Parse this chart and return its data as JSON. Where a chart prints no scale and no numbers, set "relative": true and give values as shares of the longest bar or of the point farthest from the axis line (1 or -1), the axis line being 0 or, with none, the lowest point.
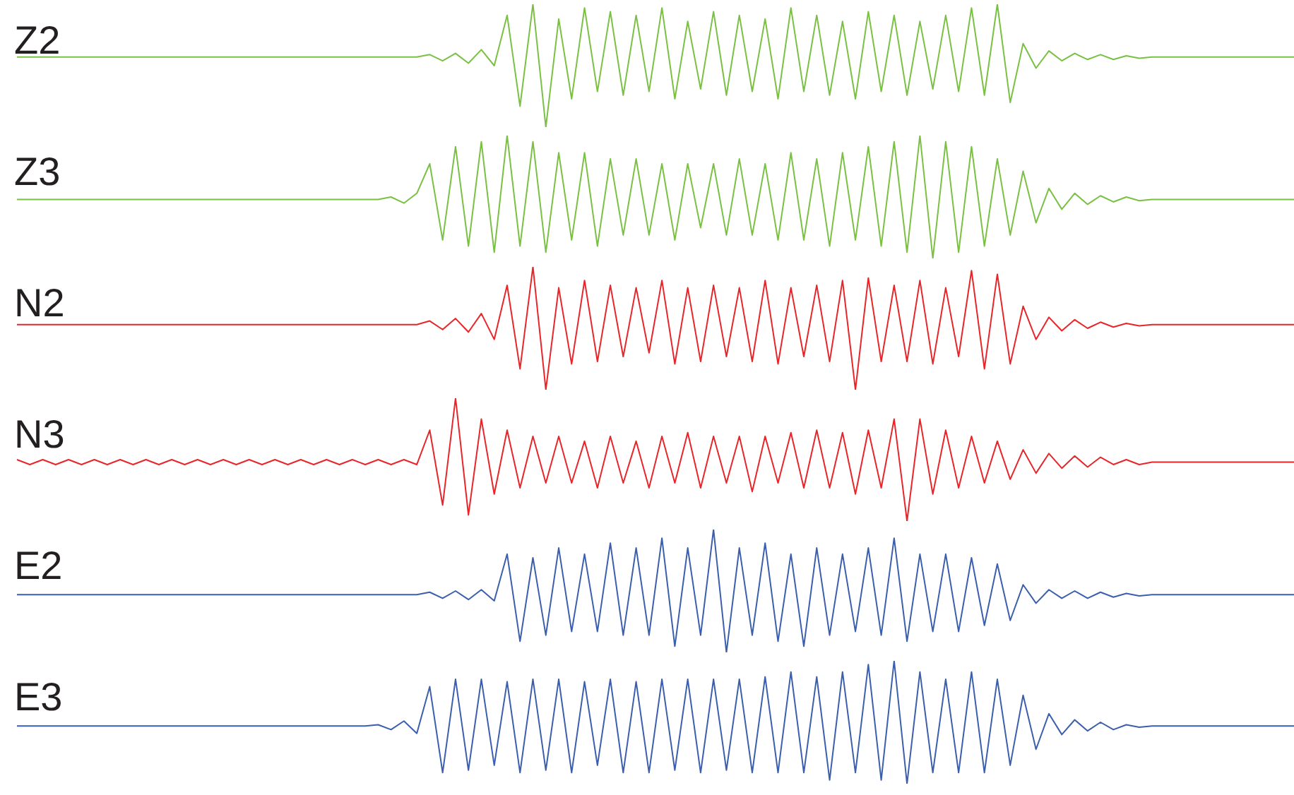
{
  "chart_data": [
    {
      "type": "line",
      "relative": true,
      "title": "Z2",
      "categories": [
        null,
        null,
        null,
        null,
        null,
        null,
        null,
        null,
        null,
        null,
        null,
        null,
        null,
        null,
        null,
        null,
        null,
        null,
        null,
        null,
        null,
        null,
        null,
        null,
        null,
        null,
        null,
        null,
        null,
        null,
        null,
        null,
        null,
        null,
        null,
        null,
        null,
        null,
        null,
        null,
        null,
        null,
        null,
        null,
        null,
        null,
        null,
        null,
        null,
        null,
        null,
        null,
        null,
        null,
        null,
        null,
        null,
        null,
        null,
        null,
        null,
        null,
        null,
        null,
        null,
        null,
        null,
        null,
        null,
        null,
        null,
        null,
        null,
        null,
        null,
        null,
        null,
        null,
        null,
        null,
        null,
        null,
        null,
        null,
        null,
        null,
        null,
        null,
        null,
        null,
        null,
        null,
        null,
        null,
        null,
        null,
        null,
        null,
        null,
        null
      ],
      "series": [
        {
          "color": "#7ac143",
          "values": [
            0.57,
            0.57,
            0.57,
            0.57,
            0.57,
            0.57,
            0.57,
            0.57,
            0.57,
            0.57,
            0.57,
            0.57,
            0.57,
            0.57,
            0.57,
            0.57,
            0.57,
            0.57,
            0.57,
            0.57,
            0.57,
            0.57,
            0.57,
            0.57,
            0.57,
            0.57,
            0.57,
            0.57,
            0.57,
            0.57,
            0.57,
            0.57,
            0.59,
            0.54,
            0.6,
            0.52,
            0.63,
            0.5,
            0.91,
            0.17,
            1,
            0,
            0.88,
            0.23,
            0.97,
            0.29,
            0.94,
            0.26,
            0.91,
            0.29,
            0.97,
            0.23,
            0.86,
            0.31,
            0.94,
            0.26,
            0.91,
            0.29,
            0.88,
            0.23,
            0.97,
            0.29,
            0.91,
            0.26,
            0.86,
            0.23,
            0.94,
            0.29,
            0.91,
            0.26,
            0.86,
            0.31,
            0.91,
            0.29,
            0.97,
            0.26,
            1,
            0.2,
            0.68,
            0.48,
            0.62,
            0.54,
            0.6,
            0.55,
            0.59,
            0.55,
            0.58,
            0.56,
            0.57,
            0.57,
            0.57,
            0.57,
            0.57,
            0.57,
            0.57,
            0.57,
            0.57,
            0.57,
            0.57,
            0.57
          ]
        }
      ]
    },
    {
      "type": "line",
      "relative": true,
      "title": "Z3",
      "categories": [
        null,
        null,
        null,
        null,
        null,
        null,
        null,
        null,
        null,
        null,
        null,
        null,
        null,
        null,
        null,
        null,
        null,
        null,
        null,
        null,
        null,
        null,
        null,
        null,
        null,
        null,
        null,
        null,
        null,
        null,
        null,
        null,
        null,
        null,
        null,
        null,
        null,
        null,
        null,
        null,
        null,
        null,
        null,
        null,
        null,
        null,
        null,
        null,
        null,
        null,
        null,
        null,
        null,
        null,
        null,
        null,
        null,
        null,
        null,
        null,
        null,
        null,
        null,
        null,
        null,
        null,
        null,
        null,
        null,
        null,
        null,
        null,
        null,
        null,
        null,
        null,
        null,
        null,
        null,
        null,
        null,
        null,
        null,
        null,
        null,
        null,
        null,
        null,
        null,
        null,
        null,
        null,
        null,
        null,
        null,
        null,
        null,
        null,
        null,
        null
      ],
      "series": [
        {
          "color": "#7ac143",
          "values": [
            0.48,
            0.48,
            0.48,
            0.48,
            0.48,
            0.48,
            0.48,
            0.48,
            0.48,
            0.48,
            0.48,
            0.48,
            0.48,
            0.48,
            0.48,
            0.48,
            0.48,
            0.48,
            0.48,
            0.48,
            0.48,
            0.48,
            0.48,
            0.48,
            0.48,
            0.48,
            0.48,
            0.48,
            0.48,
            0.5,
            0.45,
            0.53,
            0.77,
            0.15,
            0.91,
            0.1,
            0.95,
            0.05,
            1,
            0.1,
            0.95,
            0.05,
            0.86,
            0.15,
            0.86,
            0.1,
            0.81,
            0.19,
            0.81,
            0.19,
            0.77,
            0.15,
            0.77,
            0.25,
            0.77,
            0.19,
            0.81,
            0.19,
            0.77,
            0.15,
            0.86,
            0.15,
            0.81,
            0.1,
            0.86,
            0.15,
            0.91,
            0.1,
            0.95,
            0.05,
            1,
            0,
            0.95,
            0.05,
            0.91,
            0.1,
            0.81,
            0.19,
            0.71,
            0.29,
            0.57,
            0.4,
            0.53,
            0.44,
            0.51,
            0.46,
            0.5,
            0.47,
            0.48,
            0.48,
            0.48,
            0.48,
            0.48,
            0.48,
            0.48,
            0.48,
            0.48,
            0.48,
            0.48,
            0.48
          ]
        }
      ]
    },
    {
      "type": "line",
      "relative": true,
      "title": "N2",
      "categories": [
        null,
        null,
        null,
        null,
        null,
        null,
        null,
        null,
        null,
        null,
        null,
        null,
        null,
        null,
        null,
        null,
        null,
        null,
        null,
        null,
        null,
        null,
        null,
        null,
        null,
        null,
        null,
        null,
        null,
        null,
        null,
        null,
        null,
        null,
        null,
        null,
        null,
        null,
        null,
        null,
        null,
        null,
        null,
        null,
        null,
        null,
        null,
        null,
        null,
        null,
        null,
        null,
        null,
        null,
        null,
        null,
        null,
        null,
        null,
        null,
        null,
        null,
        null,
        null,
        null,
        null,
        null,
        null,
        null,
        null,
        null,
        null,
        null,
        null,
        null,
        null,
        null,
        null,
        null,
        null,
        null,
        null,
        null,
        null,
        null,
        null,
        null,
        null,
        null,
        null,
        null,
        null,
        null,
        null,
        null,
        null,
        null,
        null,
        null,
        null
      ],
      "series": [
        {
          "color": "#e8262a",
          "values": [
            0.53,
            0.53,
            0.53,
            0.53,
            0.53,
            0.53,
            0.53,
            0.53,
            0.53,
            0.53,
            0.53,
            0.53,
            0.53,
            0.53,
            0.53,
            0.53,
            0.53,
            0.53,
            0.53,
            0.53,
            0.53,
            0.53,
            0.53,
            0.53,
            0.53,
            0.53,
            0.53,
            0.53,
            0.53,
            0.53,
            0.53,
            0.53,
            0.56,
            0.49,
            0.58,
            0.47,
            0.62,
            0.41,
            0.85,
            0.17,
            1,
            0,
            0.83,
            0.21,
            0.89,
            0.23,
            0.85,
            0.27,
            0.83,
            0.3,
            0.89,
            0.21,
            0.83,
            0.23,
            0.85,
            0.27,
            0.83,
            0.23,
            0.89,
            0.21,
            0.83,
            0.27,
            0.85,
            0.23,
            0.89,
            0,
            0.91,
            0.23,
            0.85,
            0.23,
            0.89,
            0.21,
            0.83,
            0.27,
            0.97,
            0.17,
            0.94,
            0.21,
            0.68,
            0.41,
            0.59,
            0.48,
            0.57,
            0.5,
            0.55,
            0.51,
            0.54,
            0.52,
            0.53,
            0.53,
            0.53,
            0.53,
            0.53,
            0.53,
            0.53,
            0.53,
            0.53,
            0.53,
            0.53,
            0.53
          ]
        }
      ]
    },
    {
      "type": "line",
      "relative": true,
      "title": "N3",
      "categories": [
        null,
        null,
        null,
        null,
        null,
        null,
        null,
        null,
        null,
        null,
        null,
        null,
        null,
        null,
        null,
        null,
        null,
        null,
        null,
        null,
        null,
        null,
        null,
        null,
        null,
        null,
        null,
        null,
        null,
        null,
        null,
        null,
        null,
        null,
        null,
        null,
        null,
        null,
        null,
        null,
        null,
        null,
        null,
        null,
        null,
        null,
        null,
        null,
        null,
        null,
        null,
        null,
        null,
        null,
        null,
        null,
        null,
        null,
        null,
        null,
        null,
        null,
        null,
        null,
        null,
        null,
        null,
        null,
        null,
        null,
        null,
        null,
        null,
        null,
        null,
        null,
        null,
        null,
        null,
        null,
        null,
        null,
        null,
        null,
        null,
        null,
        null,
        null,
        null,
        null,
        null,
        null,
        null,
        null,
        null,
        null,
        null,
        null,
        null,
        null
      ],
      "series": [
        {
          "color": "#e8262a",
          "values": [
            0.5,
            0.46,
            0.5,
            0.46,
            0.5,
            0.46,
            0.5,
            0.46,
            0.5,
            0.46,
            0.5,
            0.46,
            0.5,
            0.46,
            0.5,
            0.46,
            0.5,
            0.46,
            0.5,
            0.46,
            0.5,
            0.46,
            0.5,
            0.46,
            0.5,
            0.46,
            0.5,
            0.46,
            0.5,
            0.46,
            0.5,
            0.46,
            0.74,
            0.13,
            1,
            0.05,
            0.83,
            0.22,
            0.74,
            0.27,
            0.69,
            0.31,
            0.69,
            0.31,
            0.65,
            0.27,
            0.69,
            0.31,
            0.65,
            0.27,
            0.69,
            0.31,
            0.72,
            0.27,
            0.69,
            0.31,
            0.69,
            0.24,
            0.69,
            0.31,
            0.72,
            0.27,
            0.74,
            0.27,
            0.72,
            0.22,
            0.74,
            0.27,
            0.83,
            0,
            0.83,
            0.22,
            0.74,
            0.27,
            0.69,
            0.31,
            0.65,
            0.34,
            0.58,
            0.39,
            0.55,
            0.43,
            0.53,
            0.44,
            0.52,
            0.46,
            0.5,
            0.46,
            0.48,
            0.48,
            0.48,
            0.48,
            0.48,
            0.48,
            0.48,
            0.48,
            0.48,
            0.48,
            0.48,
            0.48
          ]
        }
      ]
    },
    {
      "type": "line",
      "relative": true,
      "title": "E2",
      "categories": [
        null,
        null,
        null,
        null,
        null,
        null,
        null,
        null,
        null,
        null,
        null,
        null,
        null,
        null,
        null,
        null,
        null,
        null,
        null,
        null,
        null,
        null,
        null,
        null,
        null,
        null,
        null,
        null,
        null,
        null,
        null,
        null,
        null,
        null,
        null,
        null,
        null,
        null,
        null,
        null,
        null,
        null,
        null,
        null,
        null,
        null,
        null,
        null,
        null,
        null,
        null,
        null,
        null,
        null,
        null,
        null,
        null,
        null,
        null,
        null,
        null,
        null,
        null,
        null,
        null,
        null,
        null,
        null,
        null,
        null,
        null,
        null,
        null,
        null,
        null,
        null,
        null,
        null,
        null,
        null,
        null,
        null,
        null,
        null,
        null,
        null,
        null,
        null,
        null,
        null,
        null,
        null,
        null,
        null,
        null,
        null,
        null,
        null,
        null,
        null
      ],
      "series": [
        {
          "color": "#3b5fad",
          "values": [
            0.47,
            0.47,
            0.47,
            0.47,
            0.47,
            0.47,
            0.47,
            0.47,
            0.47,
            0.47,
            0.47,
            0.47,
            0.47,
            0.47,
            0.47,
            0.47,
            0.47,
            0.47,
            0.47,
            0.47,
            0.47,
            0.47,
            0.47,
            0.47,
            0.47,
            0.47,
            0.47,
            0.47,
            0.47,
            0.47,
            0.47,
            0.47,
            0.49,
            0.44,
            0.5,
            0.43,
            0.51,
            0.42,
            0.8,
            0.09,
            0.77,
            0.14,
            0.85,
            0.17,
            0.8,
            0.17,
            0.89,
            0.14,
            0.85,
            0.14,
            0.93,
            0.05,
            0.85,
            0.14,
            1,
            0,
            0.85,
            0.14,
            0.89,
            0.09,
            0.8,
            0.05,
            0.85,
            0.14,
            0.8,
            0.17,
            0.85,
            0.14,
            0.93,
            0.09,
            0.8,
            0.17,
            0.8,
            0.17,
            0.77,
            0.22,
            0.72,
            0.26,
            0.55,
            0.4,
            0.51,
            0.44,
            0.5,
            0.44,
            0.49,
            0.45,
            0.48,
            0.46,
            0.47,
            0.47,
            0.47,
            0.47,
            0.47,
            0.47,
            0.47,
            0.47,
            0.47,
            0.47,
            0.47,
            0.47
          ]
        }
      ]
    },
    {
      "type": "line",
      "relative": true,
      "title": "E3",
      "categories": [
        null,
        null,
        null,
        null,
        null,
        null,
        null,
        null,
        null,
        null,
        null,
        null,
        null,
        null,
        null,
        null,
        null,
        null,
        null,
        null,
        null,
        null,
        null,
        null,
        null,
        null,
        null,
        null,
        null,
        null,
        null,
        null,
        null,
        null,
        null,
        null,
        null,
        null,
        null,
        null,
        null,
        null,
        null,
        null,
        null,
        null,
        null,
        null,
        null,
        null,
        null,
        null,
        null,
        null,
        null,
        null,
        null,
        null,
        null,
        null,
        null,
        null,
        null,
        null,
        null,
        null,
        null,
        null,
        null,
        null,
        null,
        null,
        null,
        null,
        null,
        null,
        null,
        null,
        null,
        null,
        null,
        null,
        null,
        null,
        null,
        null,
        null,
        null,
        null,
        null,
        null,
        null,
        null,
        null,
        null,
        null,
        null,
        null,
        null,
        null
      ],
      "series": [
        {
          "color": "#3b5fad",
          "values": [
            0.47,
            0.47,
            0.47,
            0.47,
            0.47,
            0.47,
            0.47,
            0.47,
            0.47,
            0.47,
            0.47,
            0.47,
            0.47,
            0.47,
            0.47,
            0.47,
            0.47,
            0.47,
            0.47,
            0.47,
            0.47,
            0.47,
            0.47,
            0.47,
            0.47,
            0.47,
            0.47,
            0.47,
            0.48,
            0.44,
            0.51,
            0.41,
            0.79,
            0.09,
            0.85,
            0.11,
            0.85,
            0.15,
            0.83,
            0.09,
            0.85,
            0.11,
            0.85,
            0.09,
            0.83,
            0.15,
            0.85,
            0.09,
            0.83,
            0.09,
            0.85,
            0.11,
            0.85,
            0.09,
            0.85,
            0.11,
            0.85,
            0.09,
            0.87,
            0.09,
            0.91,
            0.09,
            0.87,
            0.03,
            0.91,
            0.09,
            0.97,
            0.03,
            1,
            0,
            0.91,
            0.09,
            0.85,
            0.09,
            0.91,
            0.09,
            0.85,
            0.15,
            0.72,
            0.28,
            0.57,
            0.4,
            0.52,
            0.43,
            0.5,
            0.44,
            0.48,
            0.46,
            0.47,
            0.47,
            0.47,
            0.47,
            0.47,
            0.47,
            0.47,
            0.47,
            0.47,
            0.47,
            0.47,
            0.47
          ]
        }
      ]
    }
  ]
}
